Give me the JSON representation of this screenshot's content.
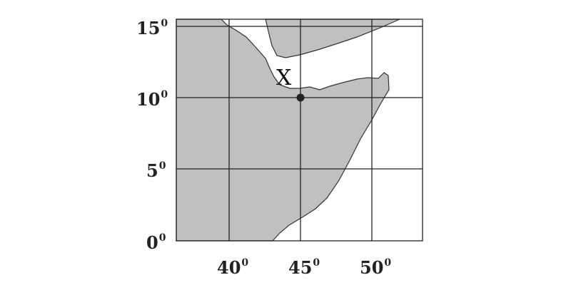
{
  "map": {
    "latitudes": [
      {
        "value": "15",
        "sup": "0"
      },
      {
        "value": "10",
        "sup": "0"
      },
      {
        "value": "5",
        "sup": "0"
      },
      {
        "value": "0",
        "sup": "0"
      }
    ],
    "longitudes": [
      {
        "value": "40",
        "sup": "0"
      },
      {
        "value": "45",
        "sup": "0"
      },
      {
        "value": "50",
        "sup": "0"
      }
    ],
    "marker": {
      "label": "X",
      "lat": 10,
      "lon": 45
    },
    "colors": {
      "land": "#c0c0c0",
      "water": "#ffffff",
      "grid": "#222222",
      "outline": "#111111"
    }
  }
}
